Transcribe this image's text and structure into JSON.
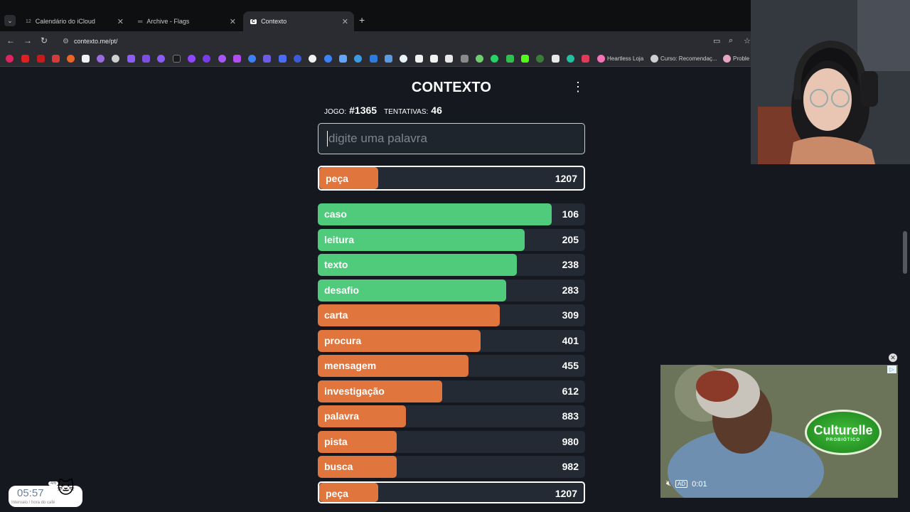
{
  "browser": {
    "tabs": [
      {
        "label": "Calendário do iCloud",
        "badge": "12"
      },
      {
        "label": "Archive - Flags"
      },
      {
        "label": "Contexto"
      }
    ],
    "url": "contexto.me/pt/",
    "bookmarks": [
      "Heartless Loja",
      "Curso: Recomendaç...",
      "Proble"
    ]
  },
  "game": {
    "title": "CONTEXTO",
    "jogo_label": "JOGO:",
    "jogo_value": "#1365",
    "tentativas_label": "TENTATIVAS:",
    "tentativas_value": "46",
    "input_placeholder": "digite uma palavra"
  },
  "current_guess": {
    "word": "peça",
    "rank": "1207",
    "fill_fraction": 0.22
  },
  "guesses": [
    {
      "word": "caso",
      "rank": "106",
      "color": "#4fcb7b",
      "fill_fraction": 0.875
    },
    {
      "word": "leitura",
      "rank": "205",
      "color": "#4fcb7b",
      "fill_fraction": 0.775
    },
    {
      "word": "texto",
      "rank": "238",
      "color": "#4fcb7b",
      "fill_fraction": 0.745
    },
    {
      "word": "desafio",
      "rank": "283",
      "color": "#4fcb7b",
      "fill_fraction": 0.705
    },
    {
      "word": "carta",
      "rank": "309",
      "color": "#e0763e",
      "fill_fraction": 0.68
    },
    {
      "word": "procura",
      "rank": "401",
      "color": "#e0763e",
      "fill_fraction": 0.61
    },
    {
      "word": "mensagem",
      "rank": "455",
      "color": "#e0763e",
      "fill_fraction": 0.565
    },
    {
      "word": "investigação",
      "rank": "612",
      "color": "#e0763e",
      "fill_fraction": 0.465
    },
    {
      "word": "palavra",
      "rank": "883",
      "color": "#e0763e",
      "fill_fraction": 0.33
    },
    {
      "word": "pista",
      "rank": "980",
      "color": "#e0763e",
      "fill_fraction": 0.295
    },
    {
      "word": "busca",
      "rank": "982",
      "color": "#e0763e",
      "fill_fraction": 0.295
    },
    {
      "word": "peça",
      "rank": "1207",
      "color": "#e0763e",
      "fill_fraction": 0.22,
      "highlighted": true
    }
  ],
  "ad": {
    "brand": "Culturelle",
    "sub": "PROBIÓTICO",
    "ad_tag": "AD",
    "time": "0:01"
  },
  "overlay": {
    "clock": "05:57",
    "counter": "4/6",
    "caption": "Intervalo / hora do café"
  },
  "colors": {
    "green": "#4fcb7b",
    "orange": "#e0763e",
    "bg": "#15191f",
    "row_bg": "#232a33"
  }
}
